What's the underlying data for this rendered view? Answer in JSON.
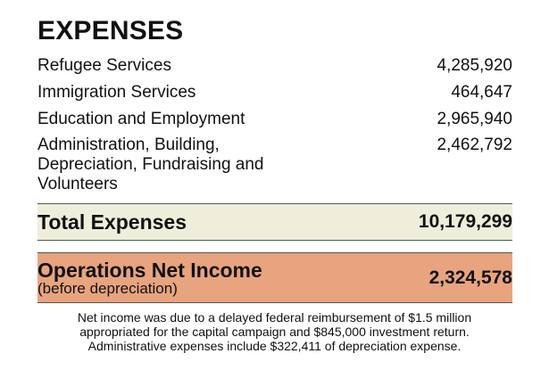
{
  "heading": "EXPENSES",
  "items": [
    {
      "label": "Refugee Services",
      "value": "4,285,920"
    },
    {
      "label": "Immigration Services",
      "value": "464,647"
    },
    {
      "label": "Education and Employment",
      "value": "2,965,940"
    },
    {
      "label": "Administration, Building, Depreciation, Fundraising and Volunteers",
      "value": "2,462,792"
    }
  ],
  "total": {
    "label": "Total Expenses",
    "value": "10,179,299"
  },
  "net_income": {
    "label": "Operations Net Income",
    "sublabel": "(before depreciation)",
    "value": "2,324,578"
  },
  "footnote": [
    "Net income was due to a delayed federal reimbursement of $1.5 million",
    "appropriated for the capital campaign and $845,000 investment return.",
    "Administrative expenses include $322,411 of depreciation expense."
  ],
  "colors": {
    "total_band": "#eeeedb",
    "net_band": "#e8a47e"
  }
}
